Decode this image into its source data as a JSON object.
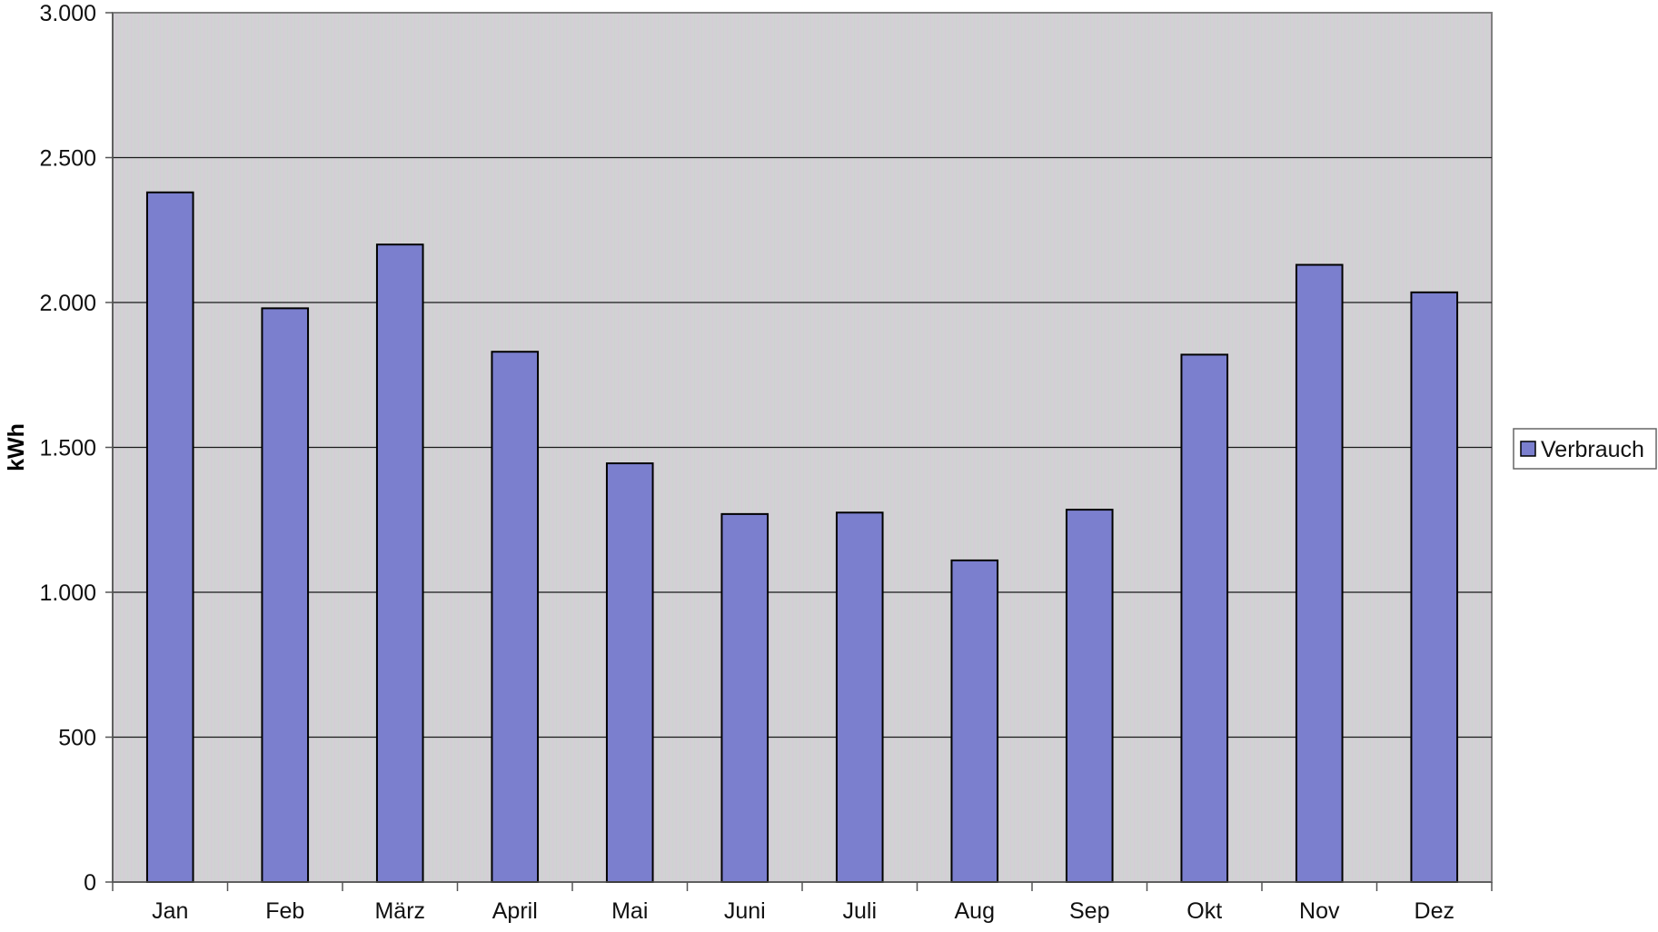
{
  "chart_data": {
    "type": "bar",
    "categories": [
      "Jan",
      "Feb",
      "März",
      "April",
      "Mai",
      "Juni",
      "Juli",
      "Aug",
      "Sep",
      "Okt",
      "Nov",
      "Dez"
    ],
    "series": [
      {
        "name": "Verbrauch",
        "values": [
          2380,
          1980,
          2200,
          1830,
          1445,
          1270,
          1275,
          1110,
          1285,
          1820,
          2130,
          2035
        ]
      }
    ],
    "title": "",
    "xlabel": "",
    "ylabel": "kWh",
    "ylim": [
      0,
      3000
    ],
    "yticks": [
      0,
      500,
      1000,
      1500,
      2000,
      2500,
      3000
    ],
    "ytick_labels": [
      "0",
      "500",
      "1.000",
      "1.500",
      "2.000",
      "2.500",
      "3.000"
    ],
    "grid": true,
    "legend_position": "right",
    "colors": {
      "bar_fill": "#7b7fce",
      "bar_stroke": "#000000",
      "plot_background": "#d3d3d3",
      "gridline": "#1a1a1a"
    }
  }
}
